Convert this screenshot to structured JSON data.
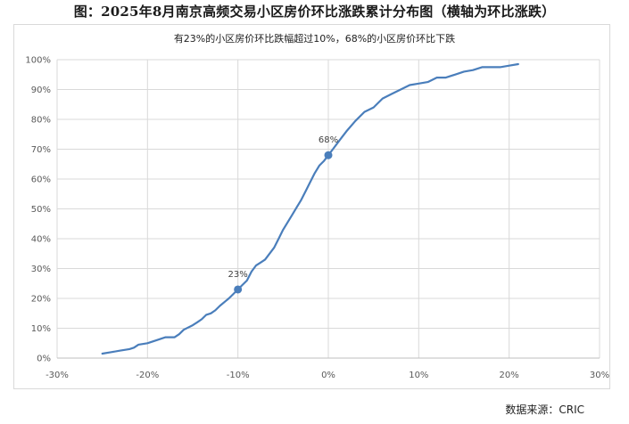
{
  "title": "图：2025年8月南京高频交易小区房价环比涨跌累计分布图（横轴为环比涨跌）",
  "source": "数据来源：CRIC",
  "colors": {
    "line": "#4a7ebb",
    "grid": "#d9d9d9",
    "text": "#595959"
  },
  "chart_data": {
    "type": "line",
    "title": "图：2025年8月南京高频交易小区房价环比涨跌累计分布图（横轴为环比涨跌）",
    "subtitle": "有23%的小区房价环比跌幅超过10%，68%的小区房价环比下跌",
    "xlabel": "",
    "ylabel": "",
    "xlim": [
      -30,
      30
    ],
    "ylim": [
      0,
      100
    ],
    "x_ticks": [
      "-30%",
      "-20%",
      "-10%",
      "0%",
      "10%",
      "20%",
      "30%"
    ],
    "y_ticks": [
      "0%",
      "10%",
      "20%",
      "30%",
      "40%",
      "50%",
      "60%",
      "70%",
      "80%",
      "90%",
      "100%"
    ],
    "grid": true,
    "series": [
      {
        "x": [
          -25,
          -24,
          -23,
          -22,
          -21.5,
          -21,
          -20,
          -19,
          -18,
          -17,
          -16.5,
          -16,
          -15,
          -14.5,
          -14,
          -13.5,
          -13,
          -12.5,
          -12,
          -11,
          -10.5,
          -10,
          -9.5,
          -9,
          -8.5,
          -8,
          -7.5,
          -7,
          -6.5,
          -6,
          -5.5,
          -5,
          -4.5,
          -4,
          -3.5,
          -3,
          -2.5,
          -2,
          -1.5,
          -1,
          -0.5,
          0,
          0.5,
          1,
          1.5,
          2,
          3,
          4,
          5,
          6,
          7,
          8,
          9,
          10,
          11,
          12,
          13,
          14,
          15,
          16,
          17,
          18,
          19,
          20,
          21
        ],
        "y": [
          1.5,
          2,
          2.5,
          3,
          3.5,
          4.5,
          5,
          6,
          7,
          7,
          8,
          9.5,
          11,
          12,
          13,
          14.5,
          15,
          16,
          17.5,
          20,
          21.5,
          23,
          24.5,
          26,
          29,
          31,
          32,
          33,
          35,
          37,
          40,
          43,
          45.5,
          48,
          50.5,
          53,
          56,
          59,
          62,
          64.5,
          66,
          68,
          70,
          72,
          74,
          76,
          79.5,
          82.5,
          84,
          87,
          88.5,
          90,
          91.5,
          92,
          92.5,
          94,
          94,
          95,
          96,
          96.5,
          97.5,
          97.5,
          97.5,
          98,
          98.5
        ]
      }
    ],
    "annotations": [
      {
        "x": -10,
        "y": 23,
        "label": "23%"
      },
      {
        "x": 0,
        "y": 68,
        "label": "68%"
      }
    ]
  }
}
